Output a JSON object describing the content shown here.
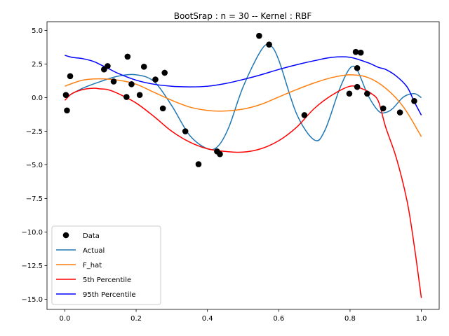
{
  "chart_data": {
    "type": "line",
    "title": "BootSrap : n = 30 -- Kernel : RBF",
    "xlabel": "",
    "ylabel": "",
    "xlim": [
      -0.05,
      1.05
    ],
    "ylim": [
      -15.75,
      5.65
    ],
    "xticks": [
      0.0,
      0.2,
      0.4,
      0.6,
      0.8,
      1.0
    ],
    "xtick_labels": [
      "0.0",
      "0.2",
      "0.4",
      "0.6",
      "0.8",
      "1.0"
    ],
    "yticks": [
      5.0,
      2.5,
      0.0,
      -2.5,
      -5.0,
      -7.5,
      -10.0,
      -12.5,
      -15.0
    ],
    "ytick_labels": [
      "5.0",
      "2.5",
      "0.0",
      "−2.5",
      "−5.0",
      "−7.5",
      "−10.0",
      "−12.5",
      "−15.0"
    ],
    "legend_position": "lower-left",
    "points": {
      "name": "Data",
      "color": "#000000",
      "x": [
        0.003,
        0.006,
        0.015,
        0.11,
        0.12,
        0.137,
        0.173,
        0.176,
        0.187,
        0.21,
        0.222,
        0.254,
        0.275,
        0.28,
        0.338,
        0.375,
        0.427,
        0.435,
        0.545,
        0.573,
        0.672,
        0.798,
        0.816,
        0.82,
        0.82,
        0.83,
        0.848,
        0.893,
        0.94,
        0.98
      ],
      "y": [
        0.2,
        -0.95,
        1.6,
        2.1,
        2.35,
        1.2,
        0.05,
        3.05,
        1.0,
        0.2,
        2.3,
        1.35,
        -0.8,
        1.85,
        -2.5,
        -4.95,
        -4.0,
        -4.2,
        4.6,
        3.95,
        -1.3,
        0.3,
        3.4,
        0.8,
        2.2,
        3.35,
        0.3,
        -0.8,
        -1.1,
        -0.25
      ]
    },
    "series": [
      {
        "name": "Actual",
        "color": "#1f77b4",
        "x": [
          0.0,
          0.05,
          0.1,
          0.15,
          0.2,
          0.25,
          0.3,
          0.35,
          0.4,
          0.43,
          0.46,
          0.5,
          0.55,
          0.575,
          0.6,
          0.65,
          0.7,
          0.73,
          0.77,
          0.8,
          0.82,
          0.85,
          0.88,
          0.9,
          0.92,
          0.95,
          0.98,
          1.0
        ],
        "values": [
          0.0,
          0.7,
          1.2,
          1.6,
          1.7,
          1.2,
          -0.6,
          -2.8,
          -3.8,
          -3.6,
          -2.2,
          0.8,
          3.5,
          3.9,
          2.8,
          -1.2,
          -3.15,
          -2.4,
          0.6,
          2.2,
          2.05,
          0.2,
          -1.0,
          -1.1,
          -0.8,
          0.05,
          0.3,
          0.0
        ]
      },
      {
        "name": "F_hat",
        "color": "#ff7f0e",
        "x": [
          0.0,
          0.05,
          0.1,
          0.15,
          0.2,
          0.25,
          0.3,
          0.35,
          0.4,
          0.44,
          0.5,
          0.55,
          0.6,
          0.65,
          0.7,
          0.75,
          0.8,
          0.85,
          0.9,
          0.95,
          1.0
        ],
        "values": [
          0.85,
          1.3,
          1.4,
          1.3,
          1.0,
          0.4,
          -0.2,
          -0.7,
          -0.95,
          -1.0,
          -0.85,
          -0.5,
          0.05,
          0.6,
          1.1,
          1.5,
          1.7,
          1.5,
          0.7,
          -0.7,
          -2.9
        ]
      },
      {
        "name": "5th Percentile",
        "color": "#ff0000",
        "x": [
          0.0,
          0.02,
          0.05,
          0.08,
          0.1,
          0.12,
          0.15,
          0.2,
          0.25,
          0.3,
          0.35,
          0.4,
          0.45,
          0.5,
          0.55,
          0.6,
          0.65,
          0.7,
          0.75,
          0.8,
          0.83,
          0.86,
          0.88,
          0.9,
          0.93,
          0.96,
          0.98,
          1.0
        ],
        "values": [
          -0.2,
          0.3,
          0.6,
          0.7,
          0.65,
          0.6,
          0.3,
          -0.4,
          -1.4,
          -2.5,
          -3.3,
          -3.8,
          -4.0,
          -4.05,
          -3.8,
          -3.2,
          -2.2,
          -0.8,
          0.2,
          0.85,
          0.7,
          0.3,
          -0.3,
          -2.2,
          -4.5,
          -7.7,
          -11.0,
          -14.9
        ]
      },
      {
        "name": "95th Percentile",
        "color": "#0000ff",
        "x": [
          0.0,
          0.02,
          0.05,
          0.08,
          0.1,
          0.12,
          0.15,
          0.2,
          0.25,
          0.3,
          0.35,
          0.4,
          0.45,
          0.5,
          0.55,
          0.6,
          0.65,
          0.7,
          0.75,
          0.8,
          0.85,
          0.88,
          0.9,
          0.93,
          0.96,
          0.98,
          1.0
        ],
        "values": [
          3.15,
          3.0,
          2.9,
          2.7,
          2.45,
          2.2,
          1.8,
          1.3,
          1.0,
          0.85,
          0.8,
          0.85,
          1.05,
          1.35,
          1.7,
          2.1,
          2.45,
          2.75,
          3.0,
          3.0,
          2.6,
          2.25,
          2.1,
          1.6,
          0.8,
          -0.3,
          -1.3
        ]
      }
    ]
  }
}
